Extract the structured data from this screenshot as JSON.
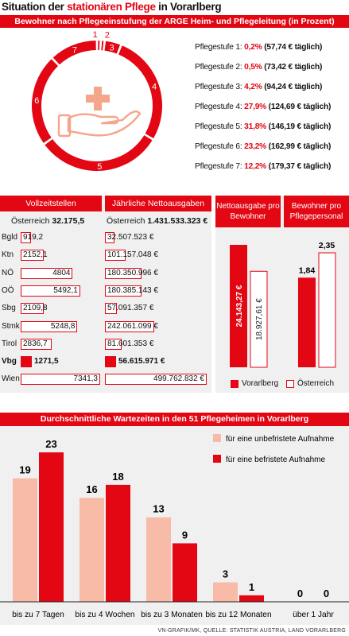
{
  "header": {
    "title_part1": "Situation der ",
    "title_part2": "stationären Pflege",
    "title_part3": " in Vorarlberg"
  },
  "section1": {
    "banner": "Bewohner nach Pflegeeinstufung der ARGE Heim- und Pflegeleitung (in Prozent)",
    "icon": "hand-with-cross-icon"
  },
  "chart_data": [
    {
      "type": "pie",
      "title": "Bewohner nach Pflegeeinstufung der ARGE Heim- und Pflegeleitung (in Prozent)",
      "categories": [
        "1",
        "2",
        "3",
        "4",
        "5",
        "6",
        "7"
      ],
      "values": [
        0.2,
        0.5,
        4.2,
        27.9,
        31.8,
        23.2,
        12.2
      ],
      "legend": [
        {
          "label": "Pflegestufe 1: ",
          "pct": "0,2%",
          "val": " (57,74 € täglich)"
        },
        {
          "label": "Pflegestufe 2: ",
          "pct": "0,5%",
          "val": " (73,42 € täglich)"
        },
        {
          "label": "Pflegestufe 3: ",
          "pct": "4,2%",
          "val": " (94,24 € täglich)"
        },
        {
          "label": "Pflegestufe 4: ",
          "pct": "27,9%",
          "val": " (124,69 € täglich)"
        },
        {
          "label": "Pflegestufe 5: ",
          "pct": "31,8%",
          "val": " (146,19 € täglich)"
        },
        {
          "label": "Pflegestufe 6: ",
          "pct": "23,2%",
          "val": " (162,99 € täglich)"
        },
        {
          "label": "Pflegestufe 7: ",
          "pct": "12,2%",
          "val": " (179,37 € täglich)"
        }
      ]
    },
    {
      "type": "table",
      "title": "Vollzeitstellen",
      "total_label": "Österreich ",
      "total_value": "32.175,5",
      "rows": [
        {
          "label": "Bgld",
          "value": 919.2,
          "text": "919,2"
        },
        {
          "label": "Ktn",
          "value": 2152.1,
          "text": "2152,1"
        },
        {
          "label": "NÖ",
          "value": 4804,
          "text": "4804"
        },
        {
          "label": "OÖ",
          "value": 5492.1,
          "text": "5492,1"
        },
        {
          "label": "Sbg",
          "value": 2109.8,
          "text": "2109,8"
        },
        {
          "label": "Stmk",
          "value": 5248.8,
          "text": "5248,8"
        },
        {
          "label": "Tirol",
          "value": 2836.7,
          "text": "2836,7"
        },
        {
          "label": "Vbg",
          "value": 1271.5,
          "text": "1271,5",
          "highlight": true
        },
        {
          "label": "Wien",
          "value": 7341.3,
          "text": "7341,3"
        }
      ]
    },
    {
      "type": "table",
      "title": "Jährliche Nettoausgaben",
      "total_label": "Österreich ",
      "total_value": "1.431.533.323 €",
      "rows": [
        {
          "value": 32507523,
          "text": "32.507.523 €"
        },
        {
          "value": 101157048,
          "text": "101.157.048 €"
        },
        {
          "value": 180350996,
          "text": "180.350.996 €"
        },
        {
          "value": 180385143,
          "text": "180.385.143 €"
        },
        {
          "value": 57091357,
          "text": "57.091.357 €"
        },
        {
          "value": 242061099,
          "text": "242.061.099 €"
        },
        {
          "value": 81601353,
          "text": "81.601.353 €"
        },
        {
          "value": 56615971,
          "text": "56.615.971 €",
          "highlight": true
        },
        {
          "value": 499762832,
          "text": "499.762.832 €"
        }
      ]
    },
    {
      "type": "bar",
      "title": "Nettoausgabe pro Bewohner",
      "series": [
        {
          "name": "Vorarlberg",
          "values": [
            24143.27
          ],
          "label": "24.143,27 €"
        },
        {
          "name": "Österreich",
          "values": [
            18927.61
          ],
          "label": "18.927,61 €"
        }
      ]
    },
    {
      "type": "bar",
      "title": "Bewohner pro Pflegepersonal",
      "series": [
        {
          "name": "Vorarlberg",
          "values": [
            1.84
          ],
          "label": "1,84"
        },
        {
          "name": "Österreich",
          "values": [
            2.35
          ],
          "label": "2,35"
        }
      ]
    },
    {
      "type": "bar",
      "title": "Durchschnittliche Wartezeiten in den 51 Pflegeheimen in Vorarlberg",
      "categories": [
        "bis zu 7 Tagen",
        "bis zu 4 Wochen",
        "bis zu 3 Monaten",
        "bis zu 12 Monaten",
        "über 1 Jahr"
      ],
      "series": [
        {
          "name": "für eine unbefristete Aufnahme",
          "values": [
            19,
            16,
            13,
            3,
            0
          ]
        },
        {
          "name": "für eine befristete Aufnahme",
          "values": [
            23,
            18,
            9,
            1,
            0
          ]
        }
      ]
    }
  ],
  "legend_mid": {
    "vbg": "Vorarlberg",
    "at": "Österreich"
  },
  "colors": {
    "red": "#e30613",
    "salmon": "#f7bba8",
    "gray": "#f0f0f0"
  },
  "footer": "VN-GRAFIK/MK, QUELLE: STATISTIK AUSTRIA, LAND VORARLBERG"
}
